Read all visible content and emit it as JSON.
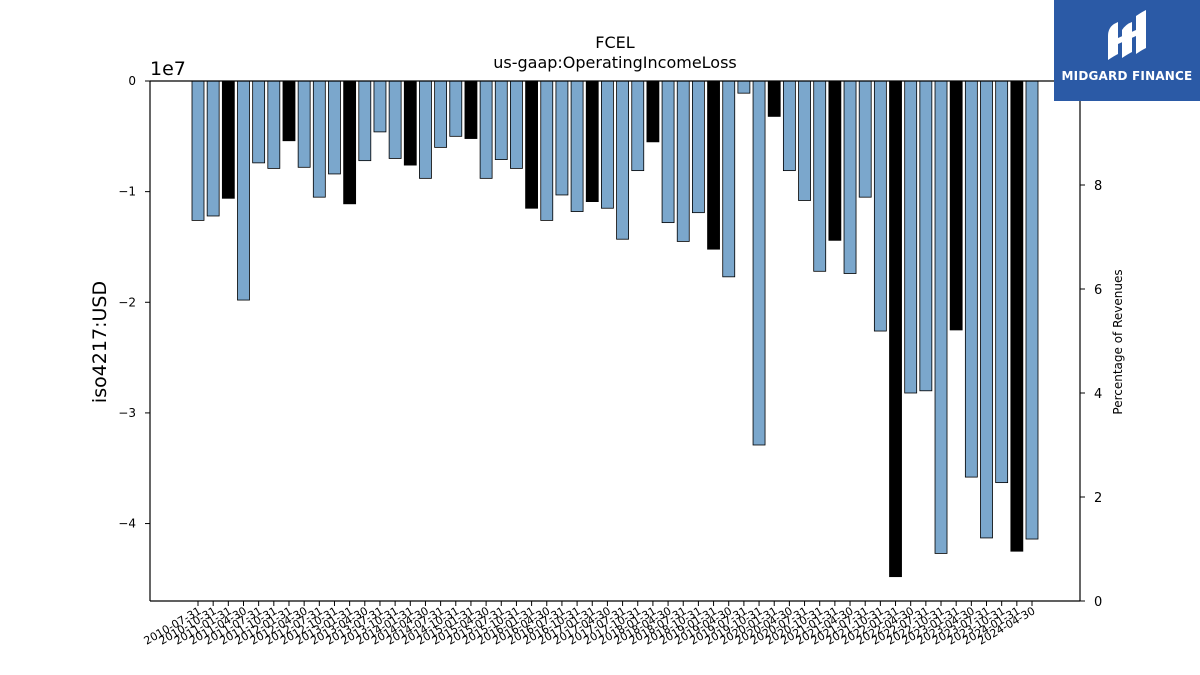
{
  "chart_data": {
    "type": "bar",
    "title": "FCEL",
    "subtitle": "us-gaap:OperatingIncomeLoss",
    "ylabel": "iso4217:USD",
    "y2label": "Percentage of Revenues",
    "offset_label": "1e7",
    "ylim": [
      -47000000,
      0
    ],
    "y_ticks": [
      0,
      -10000000,
      -20000000,
      -30000000,
      -40000000
    ],
    "y_tick_labels": [
      "0",
      "−1",
      "−2",
      "−3",
      "−4"
    ],
    "y2lim": [
      0,
      10
    ],
    "y2_ticks": [
      0,
      2,
      4,
      6,
      8
    ],
    "y2_tick_labels": [
      "0",
      "2",
      "4",
      "6",
      "8"
    ],
    "bar_colors": {
      "quarter": "#7ba7cc",
      "annual": "#000000"
    },
    "categories": [
      "2010-07-31",
      "2010-10-31",
      "2011-01-31",
      "2011-04-30",
      "2011-07-31",
      "2011-10-31",
      "2012-01-31",
      "2012-04-30",
      "2012-07-31",
      "2012-10-31",
      "2013-01-31",
      "2013-04-30",
      "2013-07-31",
      "2013-10-31",
      "2014-01-31",
      "2014-04-30",
      "2014-07-31",
      "2014-10-31",
      "2015-01-31",
      "2015-04-30",
      "2015-07-31",
      "2015-10-31",
      "2016-01-31",
      "2016-04-30",
      "2016-07-31",
      "2016-10-31",
      "2017-01-31",
      "2017-04-30",
      "2017-07-31",
      "2017-10-31",
      "2018-01-31",
      "2018-04-30",
      "2018-07-31",
      "2018-10-31",
      "2019-01-31",
      "2019-04-30",
      "2019-07-31",
      "2019-10-31",
      "2020-01-31",
      "2020-04-30",
      "2020-07-31",
      "2020-10-31",
      "2021-01-31",
      "2021-04-30",
      "2021-07-31",
      "2021-10-31",
      "2022-01-31",
      "2022-04-30",
      "2022-07-31",
      "2022-10-31",
      "2023-01-31",
      "2023-04-30",
      "2023-07-31",
      "2023-10-31",
      "2024-01-31",
      "2024-04-30"
    ],
    "values": [
      -12600000,
      -12200000,
      -10600000,
      -19800000,
      -7400000,
      -7900000,
      -5400000,
      -7800000,
      -10500000,
      -8400000,
      -11100000,
      -7200000,
      -4600000,
      -7000000,
      -7600000,
      -8800000,
      -6000000,
      -5000000,
      -5200000,
      -8800000,
      -7100000,
      -7900000,
      -11500000,
      -12600000,
      -10300000,
      -11800000,
      -10900000,
      -11500000,
      -14300000,
      -8100000,
      -5500000,
      -12800000,
      -14500000,
      -11900000,
      -15200000,
      -17700000,
      -1100000,
      -32900000,
      -3200000,
      -8100000,
      -10800000,
      -17200000,
      -14400000,
      -17400000,
      -10500000,
      -22600000,
      -44800000,
      -28200000,
      -28000000,
      -42700000,
      -22500000,
      -35800000,
      -41300000,
      -36300000,
      -42500000,
      -41400000
    ],
    "annual": [
      false,
      false,
      true,
      false,
      false,
      false,
      true,
      false,
      false,
      false,
      true,
      false,
      false,
      false,
      true,
      false,
      false,
      false,
      true,
      false,
      false,
      false,
      true,
      false,
      false,
      false,
      true,
      false,
      false,
      false,
      true,
      false,
      false,
      false,
      true,
      false,
      false,
      false,
      true,
      false,
      false,
      false,
      true,
      false,
      false,
      false,
      true,
      false,
      false,
      false,
      true,
      false,
      false,
      false,
      true,
      false
    ]
  },
  "logo": {
    "text": "MIDGARD FINANCE"
  }
}
